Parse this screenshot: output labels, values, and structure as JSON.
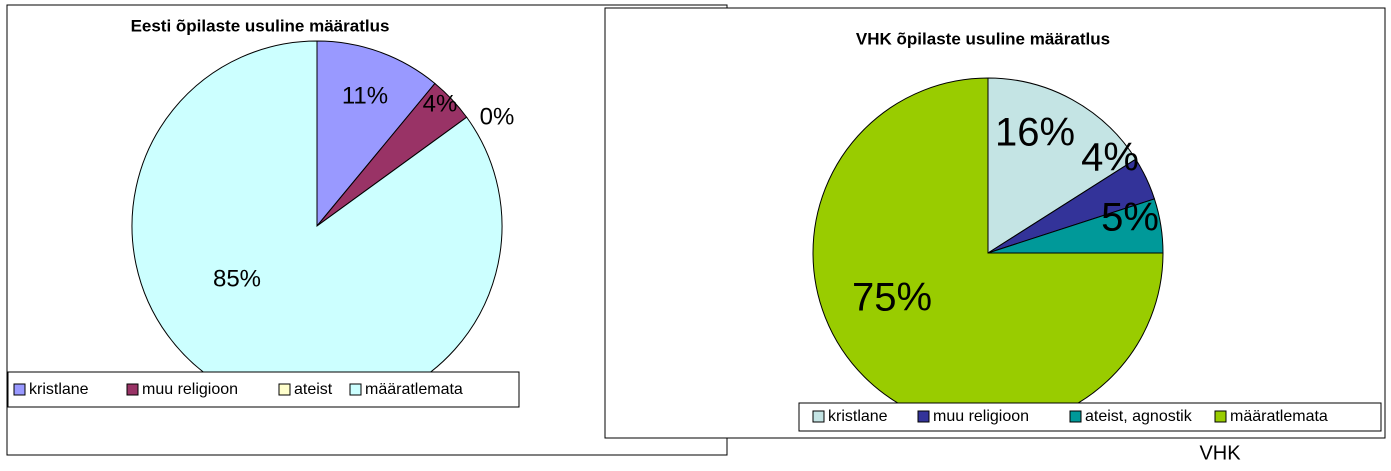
{
  "chart_data": [
    {
      "type": "pie",
      "title": "Eesti õpilaste usuline määratlus",
      "categories": [
        "kristlane",
        "muu religioon",
        "ateist",
        "määratlemata"
      ],
      "values": [
        11,
        4,
        0,
        85
      ],
      "value_labels": [
        "11%",
        "4%",
        "0%",
        "85%"
      ],
      "colors": [
        "#9999ff",
        "#993366",
        "#ffffcc",
        "#ccffff"
      ],
      "legend": "bottom"
    },
    {
      "type": "pie",
      "title": "VHK õpilaste usuline määratlus",
      "categories": [
        "kristlane",
        "muu religioon",
        "ateist, agnostik",
        "määratlemata"
      ],
      "values": [
        16,
        4,
        5,
        75
      ],
      "value_labels": [
        "16%",
        "4%",
        "5%",
        "75%"
      ],
      "colors": [
        "#c4e4e4",
        "#333399",
        "#009999",
        "#99cc00"
      ],
      "legend": "bottom"
    }
  ],
  "caption": "VHK"
}
